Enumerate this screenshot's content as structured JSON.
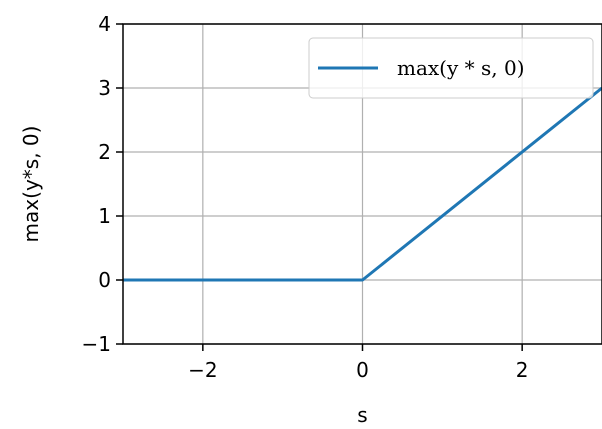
{
  "chart_data": {
    "type": "line",
    "title": "",
    "xlabel": "s",
    "ylabel": "max(y*s, 0)",
    "xlim": [
      -3,
      3
    ],
    "ylim": [
      -1,
      4
    ],
    "xticks": [
      -2,
      0,
      2
    ],
    "yticks": [
      -1,
      0,
      1,
      2,
      3,
      4
    ],
    "xtick_labels": [
      "−2",
      "0",
      "2"
    ],
    "ytick_labels": [
      "−1",
      "0",
      "1",
      "2",
      "3",
      "4"
    ],
    "grid": true,
    "legend_position": "top-right",
    "series": [
      {
        "name": "max(y * s, 0)",
        "color": "#1f77b4",
        "x": [
          -3,
          0,
          3
        ],
        "y": [
          0,
          0,
          3
        ]
      }
    ]
  }
}
